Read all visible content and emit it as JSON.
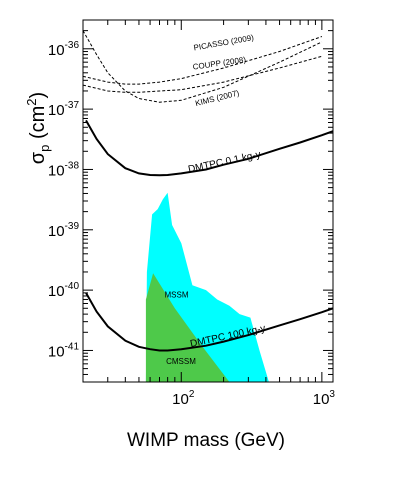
{
  "chart_data": {
    "type": "line",
    "xlabel": "WIMP mass (GeV)",
    "ylabel_main": "σ",
    "ylabel_sub": "p",
    "ylabel_unit_open": " (cm",
    "ylabel_unit_sup": "2",
    "ylabel_unit_close": ")",
    "xscale": "log",
    "yscale": "log",
    "xlim": [
      20,
      1200
    ],
    "ylim": [
      3e-42,
      3e-36
    ],
    "x_ticks": [
      {
        "value": 100,
        "base": "10",
        "exp": "2"
      },
      {
        "value": 1000,
        "base": "10",
        "exp": "3"
      }
    ],
    "y_ticks": [
      {
        "value": 1e-36,
        "base": "10",
        "exp": "-36"
      },
      {
        "value": 1e-37,
        "base": "10",
        "exp": "-37"
      },
      {
        "value": 1e-38,
        "base": "10",
        "exp": "-38"
      },
      {
        "value": 1e-39,
        "base": "10",
        "exp": "-39"
      },
      {
        "value": 1e-40,
        "base": "10",
        "exp": "-40"
      },
      {
        "value": 1e-41,
        "base": "10",
        "exp": "-41"
      }
    ],
    "series": [
      {
        "name": "PICASSO (2009)",
        "style": "dashed",
        "x": [
          20,
          25,
          30,
          40,
          50,
          70,
          100,
          200,
          500,
          1000
        ],
        "y": [
          2e-36,
          8e-37,
          4e-37,
          2e-37,
          1.5e-37,
          1.3e-37,
          1.4e-37,
          2.3e-37,
          6e-37,
          1.3e-36
        ]
      },
      {
        "name": "COUPP (2008)",
        "style": "dashed",
        "x": [
          20,
          30,
          40,
          50,
          70,
          100,
          200,
          500,
          1000
        ],
        "y": [
          3.5e-37,
          2.8e-37,
          2.6e-37,
          2.6e-37,
          2.8e-37,
          3.2e-37,
          4.8e-37,
          9e-37,
          1.6e-36
        ]
      },
      {
        "name": "KIMS (2007)",
        "style": "dashed",
        "x": [
          20,
          30,
          40,
          50,
          70,
          100,
          200,
          500,
          1000
        ],
        "y": [
          2.5e-37,
          2e-37,
          1.9e-37,
          1.9e-37,
          2e-37,
          2.1e-37,
          2.8e-37,
          4.8e-37,
          7.5e-37
        ]
      },
      {
        "name": "DMTPC 0.1 kg-y",
        "style": "solid",
        "x": [
          21,
          25,
          30,
          40,
          50,
          60,
          70,
          80,
          100,
          150,
          200,
          300,
          500,
          700,
          1000,
          1200
        ],
        "y": [
          6.5e-38,
          3.2e-38,
          1.8e-38,
          1.05e-38,
          8.6e-39,
          8.1e-39,
          8e-39,
          8.1e-39,
          8.6e-39,
          1e-38,
          1.2e-38,
          1.5e-38,
          2.2e-38,
          2.8e-38,
          3.7e-38,
          4.3e-38
        ]
      },
      {
        "name": "DMTPC 100 kg-y",
        "style": "solid",
        "x": [
          21,
          25,
          30,
          40,
          50,
          60,
          70,
          80,
          100,
          150,
          200,
          300,
          500,
          700,
          1000,
          1200
        ],
        "y": [
          9e-41,
          4.4e-41,
          2.5e-41,
          1.45e-41,
          1.15e-41,
          1.05e-41,
          1e-41,
          1e-41,
          1.05e-41,
          1.2e-41,
          1.4e-41,
          1.8e-41,
          2.6e-41,
          3.3e-41,
          4.3e-41,
          5e-41
        ]
      }
    ],
    "regions": [
      {
        "name": "MSSM",
        "color": "#00ffff",
        "points": [
          [
            56,
            3e-42
          ],
          [
            57,
            2e-40
          ],
          [
            62,
            1.8e-39
          ],
          [
            68,
            2.2e-39
          ],
          [
            74,
            3.2e-39
          ],
          [
            80,
            4.1e-39
          ],
          [
            86,
            1.2e-39
          ],
          [
            100,
            6e-40
          ],
          [
            120,
            1.2e-40
          ],
          [
            150,
            1e-40
          ],
          [
            180,
            7e-41
          ],
          [
            220,
            5.5e-41
          ],
          [
            260,
            4e-41
          ],
          [
            310,
            3.5e-41
          ],
          [
            360,
            1e-41
          ],
          [
            420,
            3e-42
          ]
        ]
      },
      {
        "name": "CMSSM",
        "color": "#4ec94a",
        "points": [
          [
            56,
            3e-42
          ],
          [
            56,
            7e-41
          ],
          [
            63,
            1.9e-40
          ],
          [
            90,
            5e-41
          ],
          [
            140,
            1.2e-41
          ],
          [
            220,
            3e-42
          ]
        ]
      }
    ],
    "annotations": [
      {
        "text": "PICASSO (2009)",
        "x": 330,
        "y": 1.4e-36,
        "rotate": -10,
        "size": 8
      },
      {
        "text": "COUPP (2008)",
        "x": 290,
        "y": 6e-37,
        "rotate": -8,
        "size": 8
      },
      {
        "text": "KIMS (2007)",
        "x": 260,
        "y": 1.7e-37,
        "rotate": -14,
        "size": 8
      },
      {
        "text": "DMTPC 0.1 kg-y",
        "x": 370,
        "y": 1.6e-38,
        "rotate": -12,
        "size": 10
      },
      {
        "text": "DMTPC 100 kg-y",
        "x": 400,
        "y": 2.1e-41,
        "rotate": -12,
        "size": 10
      },
      {
        "text": "MSSM",
        "x": 76,
        "y": 7.5e-41,
        "rotate": 0,
        "size": 8
      },
      {
        "text": "CMSSM",
        "x": 78,
        "y": 6e-42,
        "rotate": 0,
        "size": 8
      }
    ],
    "grid": false,
    "legend": "none"
  }
}
